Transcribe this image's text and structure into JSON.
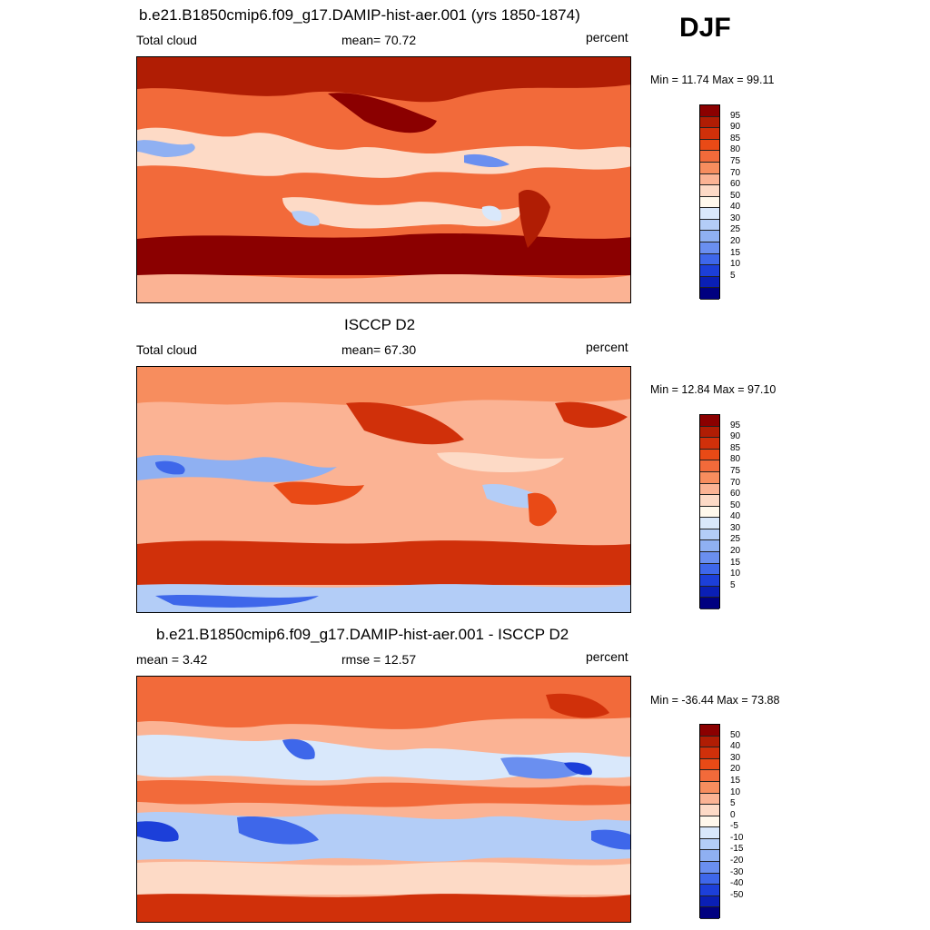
{
  "season": "DJF",
  "panels": [
    {
      "id": "model",
      "title": "b.e21.B1850cmip6.f09_g17.DAMIP-hist-aer.001 (yrs 1850-1874)",
      "left_label": "Total cloud",
      "center_label": "mean=  70.72",
      "units": "percent",
      "minmax": "Min =  11.74 Max =  99.11",
      "colorbar_labels": [
        "95",
        "90",
        "85",
        "80",
        "75",
        "70",
        "60",
        "50",
        "40",
        "30",
        "25",
        "20",
        "15",
        "10",
        "5"
      ],
      "colorbar_colors": [
        "#8b0000",
        "#b01d04",
        "#d0300a",
        "#e94a16",
        "#f26a3a",
        "#f78d5e",
        "#fbb394",
        "#fddac6",
        "#fff8ec",
        "#d9e8fb",
        "#b3cdf7",
        "#8fb0f2",
        "#6a8ff0",
        "#3e67ea",
        "#1c3fd9",
        "#0a1fb5",
        "#000080"
      ]
    },
    {
      "id": "obs",
      "title": "ISCCP D2",
      "left_label": "Total cloud",
      "center_label": "mean=  67.30",
      "units": "percent",
      "minmax": "Min =  12.84 Max =  97.10",
      "colorbar_labels": [
        "95",
        "90",
        "85",
        "80",
        "75",
        "70",
        "60",
        "50",
        "40",
        "30",
        "25",
        "20",
        "15",
        "10",
        "5"
      ],
      "colorbar_colors": [
        "#8b0000",
        "#b01d04",
        "#d0300a",
        "#e94a16",
        "#f26a3a",
        "#f78d5e",
        "#fbb394",
        "#fddac6",
        "#fff8ec",
        "#d9e8fb",
        "#b3cdf7",
        "#8fb0f2",
        "#6a8ff0",
        "#3e67ea",
        "#1c3fd9",
        "#0a1fb5",
        "#000080"
      ]
    },
    {
      "id": "diff",
      "title": "b.e21.B1850cmip6.f09_g17.DAMIP-hist-aer.001 - ISCCP D2",
      "left_label": "mean =   3.42",
      "center_label": "rmse =  12.57",
      "units": "percent",
      "minmax": "Min = -36.44 Max =  73.88",
      "colorbar_labels": [
        "50",
        "40",
        "30",
        "20",
        "15",
        "10",
        "5",
        "0",
        "-5",
        "-10",
        "-15",
        "-20",
        "-30",
        "-40",
        "-50"
      ],
      "colorbar_colors": [
        "#8b0000",
        "#b01d04",
        "#d0300a",
        "#e94a16",
        "#f26a3a",
        "#f78d5e",
        "#fbb394",
        "#fddac6",
        "#fff8ec",
        "#d9e8fb",
        "#b3cdf7",
        "#8fb0f2",
        "#6a8ff0",
        "#3e67ea",
        "#1c3fd9",
        "#0a1fb5",
        "#000080"
      ]
    }
  ]
}
